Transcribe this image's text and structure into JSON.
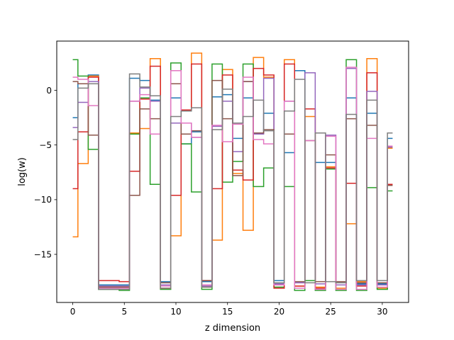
{
  "chart_data": {
    "type": "line",
    "step": "mid",
    "xlabel": "z dimension",
    "ylabel": "log(w)",
    "xlim": [
      -1.55,
      32.55
    ],
    "ylim": [
      -19.4,
      4.5
    ],
    "xticks": [
      0,
      5,
      10,
      15,
      20,
      25,
      30
    ],
    "yticks": [
      -15,
      -10,
      -5,
      0
    ],
    "grid": false,
    "x": [
      0,
      1,
      2,
      3,
      4,
      5,
      6,
      7,
      8,
      9,
      10,
      11,
      12,
      13,
      14,
      15,
      16,
      17,
      18,
      19,
      20,
      21,
      22,
      23,
      24,
      25,
      26,
      27,
      28,
      29,
      30,
      31
    ],
    "series": [
      {
        "color": "#1f77b4",
        "values": [
          -2.5,
          0.6,
          1.4,
          -17.8,
          -17.8,
          -17.8,
          1.1,
          0.9,
          -0.9,
          -17.5,
          -0.7,
          -4.9,
          -3.8,
          -17.5,
          -0.6,
          -0.4,
          -4.4,
          -0.7,
          -3.9,
          -2.1,
          -17.4,
          -5.7,
          1.8,
          -17.6,
          -6.6,
          -6.6,
          -17.6,
          -0.7,
          -17.7,
          -2.1,
          -17.7,
          -4.4
        ]
      },
      {
        "color": "#ff7f0e",
        "values": [
          -13.4,
          -6.7,
          1.3,
          -18.0,
          -18.0,
          -18.0,
          -3.9,
          -3.5,
          2.9,
          -18.1,
          -13.3,
          -1.8,
          3.4,
          -18.0,
          -13.7,
          1.9,
          -7.6,
          -12.8,
          3.0,
          1.2,
          -18.0,
          2.8,
          -17.9,
          -2.4,
          -18.0,
          -7.0,
          -18.1,
          -12.2,
          -17.5,
          2.9,
          -18.1,
          -5.3
        ]
      },
      {
        "color": "#2ca02c",
        "values": [
          2.8,
          1.3,
          -5.4,
          -18.2,
          -18.2,
          -18.3,
          -4.0,
          -0.7,
          -8.6,
          -18.2,
          2.5,
          -4.9,
          -9.3,
          -18.2,
          2.4,
          -8.4,
          -6.5,
          2.4,
          -8.8,
          -7.1,
          -18.0,
          -8.8,
          -18.3,
          -17.4,
          -18.3,
          -7.2,
          -18.3,
          2.8,
          -18.3,
          -8.9,
          -18.2,
          -9.2
        ]
      },
      {
        "color": "#d62728",
        "values": [
          -9.0,
          -3.8,
          1.2,
          -17.4,
          -17.4,
          -17.5,
          -7.4,
          -0.8,
          2.2,
          -18.1,
          -9.6,
          -1.8,
          2.4,
          -17.4,
          -9.0,
          1.4,
          -7.3,
          -8.2,
          2.0,
          1.4,
          -18.1,
          2.4,
          -17.9,
          -1.7,
          -18.1,
          -7.1,
          -17.8,
          -8.5,
          -17.9,
          1.6,
          -17.8,
          -8.6
        ]
      },
      {
        "color": "#9467bd",
        "values": [
          -3.4,
          -1.1,
          0.8,
          -17.9,
          -17.9,
          -17.9,
          -1.0,
          0.2,
          -1.0,
          -17.8,
          -3.0,
          -3.0,
          -4.3,
          -17.9,
          -3.3,
          -1.0,
          -5.6,
          0.8,
          -4.0,
          1.1,
          -17.7,
          -1.0,
          -17.6,
          1.6,
          -17.7,
          -4.1,
          -17.8,
          2.0,
          -17.8,
          -0.1,
          -17.8,
          -5.2
        ]
      },
      {
        "color": "#8c564b",
        "values": [
          0.8,
          0.6,
          -4.1,
          -18.0,
          -18.0,
          -18.0,
          -9.6,
          -1.7,
          -2.6,
          -17.6,
          0.6,
          -4.0,
          -3.7,
          -17.4,
          0.9,
          -2.6,
          -7.8,
          0.8,
          -3.9,
          -3.6,
          -17.6,
          -4.0,
          -17.5,
          -4.6,
          -17.5,
          -5.9,
          -17.5,
          -2.6,
          -17.6,
          -3.2,
          -17.6,
          -8.7
        ]
      },
      {
        "color": "#e377c2",
        "values": [
          1.2,
          1.0,
          -1.4,
          -18.1,
          -18.1,
          -18.1,
          -1.0,
          -0.4,
          -4.0,
          -17.9,
          1.8,
          -3.0,
          -4.3,
          -17.8,
          -3.2,
          -4.7,
          -3.1,
          1.2,
          -4.5,
          -4.9,
          -17.8,
          -1.0,
          -18.1,
          -4.6,
          -18.2,
          -4.2,
          -18.2,
          2.1,
          -18.2,
          -4.4,
          -18.0,
          -5.1
        ]
      },
      {
        "color": "#7f7f7f",
        "values": [
          -4.5,
          0.2,
          0.6,
          -18.2,
          -18.2,
          -18.2,
          1.5,
          0.3,
          -0.5,
          -18.1,
          -2.4,
          -1.9,
          -1.6,
          -18.0,
          -3.6,
          0.1,
          -3.0,
          -2.4,
          -0.9,
          -3.7,
          -17.6,
          -1.9,
          1.0,
          -17.6,
          -3.9,
          -17.5,
          -17.6,
          -2.2,
          -17.4,
          -0.9,
          -17.4,
          -3.9
        ]
      }
    ]
  }
}
